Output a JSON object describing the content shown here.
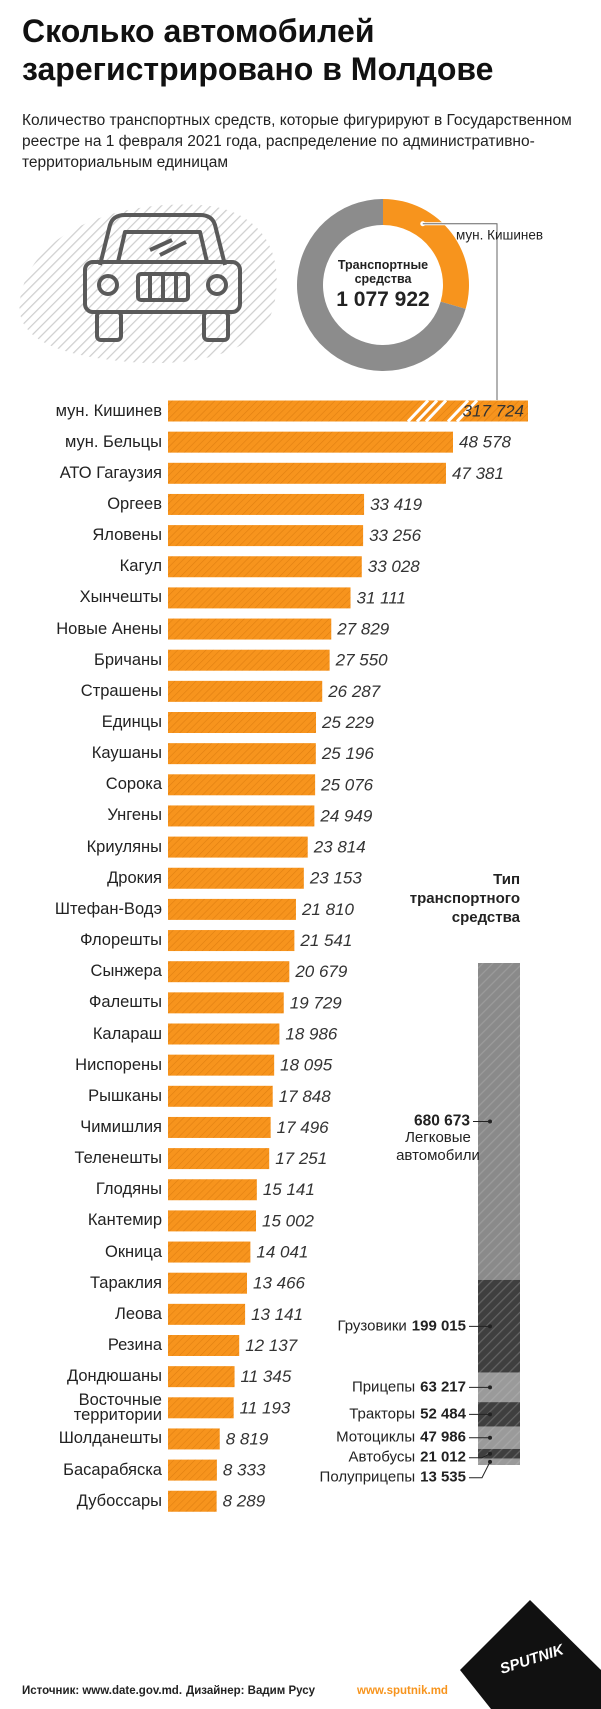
{
  "title": "Сколько автомобилей зарегистрировано в Молдове",
  "subtitle": "Количество транспортных средств, которые фигурируют в Государственном реестре на 1 февраля 2021 года, распределение по административно-территориальным единицам",
  "chart_data": [
    {
      "type": "donut",
      "center_label": "Транспортные средства",
      "total": 1077922,
      "total_label": "1 077 922",
      "series": [
        {
          "name": "мун. Кишинев",
          "value": 317724,
          "color": "#f7941d"
        }
      ],
      "rest_color": "#8c8c8c"
    },
    {
      "type": "bar",
      "color": "#f7941d",
      "categories": [
        "мун. Кишинев",
        "мун. Бельцы",
        "АТО Гагаузия",
        "Оргеев",
        "Яловены",
        "Кагул",
        "Хынчешты",
        "Новые Анены",
        "Бричаны",
        "Страшены",
        "Единцы",
        "Каушаны",
        "Сорока",
        "Унгены",
        "Криуляны",
        "Дрокия",
        "Штефан-Водэ",
        "Флорешты",
        "Сынжера",
        "Фалешты",
        "Калараш",
        "Ниспорены",
        "Рышканы",
        "Чимишлия",
        "Теленешты",
        "Глодяны",
        "Кантемир",
        "Окница",
        "Тараклия",
        "Леова",
        "Резина",
        "Дондюшаны",
        "Восточные территории",
        "Шолданешты",
        "Басарабяска",
        "Дубоссары"
      ],
      "values": [
        317724,
        48578,
        47381,
        33419,
        33256,
        33028,
        31111,
        27829,
        27550,
        26287,
        25229,
        25196,
        25076,
        24949,
        23814,
        23153,
        21810,
        21541,
        20679,
        19729,
        18986,
        18095,
        17848,
        17496,
        17251,
        15141,
        15002,
        14041,
        13466,
        13141,
        12137,
        11345,
        11193,
        8819,
        8333,
        8289
      ],
      "value_labels": [
        "317 724",
        "48 578",
        "47 381",
        "33 419",
        "33 256",
        "33 028",
        "31 111",
        "27 829",
        "27 550",
        "26 287",
        "25 229",
        "25 196",
        "25 076",
        "24 949",
        "23 814",
        "23 153",
        "21 810",
        "21 541",
        "20 679",
        "19 729",
        "18 986",
        "18 095",
        "17 848",
        "17 496",
        "17 251",
        "15 141",
        "15 002",
        "14 041",
        "13 466",
        "13 141",
        "12 137",
        "11 345",
        "11 193",
        "8 819",
        "8 333",
        "8 289"
      ]
    },
    {
      "type": "stacked_bar",
      "title": "Тип транспортного средства",
      "series": [
        {
          "name": "Легковые автомобили",
          "values": [
            680673
          ],
          "value_labels": [
            "680 673"
          ],
          "color": "#8a8a8a"
        },
        {
          "name": "Грузовики",
          "values": [
            199015
          ],
          "value_labels": [
            "199 015"
          ],
          "color": "#3f3f3f"
        },
        {
          "name": "Прицепы",
          "values": [
            63217
          ],
          "value_labels": [
            "63 217"
          ],
          "color": "#9a9a9a"
        },
        {
          "name": "Тракторы",
          "values": [
            52484
          ],
          "value_labels": [
            "52 484"
          ],
          "color": "#3f3f3f"
        },
        {
          "name": "Мотоциклы",
          "values": [
            47986
          ],
          "value_labels": [
            "47 986"
          ],
          "color": "#9a9a9a"
        },
        {
          "name": "Автобусы",
          "values": [
            21012
          ],
          "value_labels": [
            "21 012"
          ],
          "color": "#3f3f3f"
        },
        {
          "name": "Полуприцепы",
          "values": [
            13535
          ],
          "value_labels": [
            "13 535"
          ],
          "color": "#9a9a9a"
        }
      ]
    }
  ],
  "footer": {
    "source": "Источник: www.date.gov.md.",
    "designer": "Дизайнер: Вадим Русу",
    "site": "www.sputnik.md",
    "logo": "SPUTNIK"
  }
}
